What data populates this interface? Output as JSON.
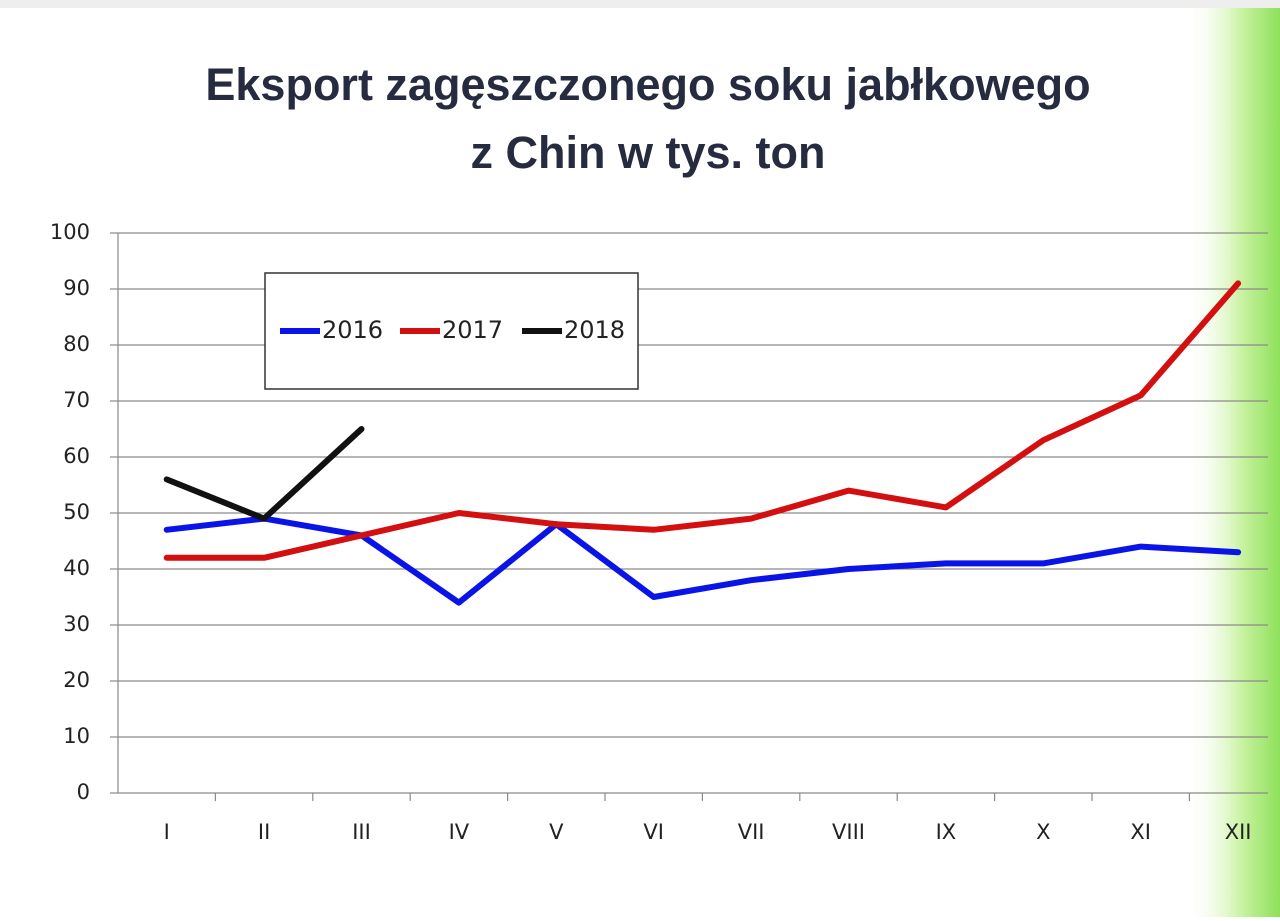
{
  "chart_data": {
    "type": "line",
    "title": [
      "Eksport zagęszczonego soku jabłkowego",
      "z Chin w tys. ton"
    ],
    "categories": [
      "I",
      "II",
      "III",
      "IV",
      "V",
      "VI",
      "VII",
      "VIII",
      "IX",
      "X",
      "XI",
      "XII"
    ],
    "series": [
      {
        "name": "2016",
        "color": "#0a14e6",
        "values": [
          47,
          49,
          46,
          34,
          48,
          35,
          38,
          40,
          41,
          41,
          44,
          43
        ]
      },
      {
        "name": "2017",
        "color": "#d40f0f",
        "values": [
          42,
          42,
          46,
          50,
          48,
          47,
          49,
          54,
          51,
          63,
          71,
          91
        ]
      },
      {
        "name": "2018",
        "color": "#111111",
        "values": [
          56,
          49,
          65,
          null,
          null,
          null,
          null,
          null,
          null,
          null,
          null,
          null
        ]
      }
    ],
    "ylim": [
      0,
      100
    ],
    "yticks": [
      0,
      10,
      20,
      30,
      40,
      50,
      60,
      70,
      80,
      90,
      100
    ],
    "grid": true
  }
}
